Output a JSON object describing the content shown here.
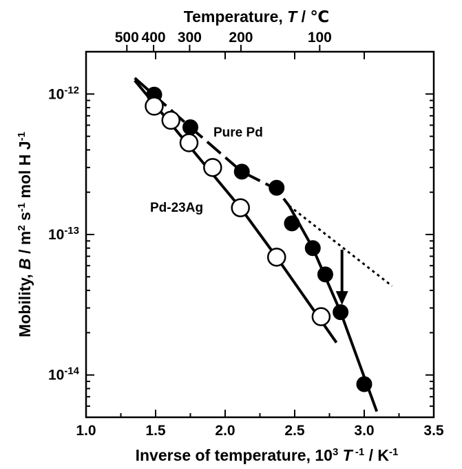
{
  "chart_data": {
    "type": "scatter",
    "x_axis": {
      "scale": "linear",
      "range": [
        1.0,
        3.5
      ],
      "ticks": [
        1.0,
        1.5,
        2.0,
        2.5,
        3.0,
        3.5
      ],
      "tick_labels": [
        "1.0",
        "1.5",
        "2.0",
        "2.5",
        "3.0",
        "3.5"
      ],
      "label_parts": [
        "Inverse of temperature, 10",
        "3",
        " T",
        " -1",
        " / K",
        "-1"
      ]
    },
    "y_axis": {
      "scale": "log",
      "range": [
        5e-15,
        2e-12
      ],
      "ticks": [
        1e-14,
        1e-13,
        1e-12
      ],
      "tick_labels": [
        {
          "base": "10",
          "exp": "-14"
        },
        {
          "base": "10",
          "exp": "-13"
        },
        {
          "base": "10",
          "exp": "-12"
        }
      ],
      "label_parts": [
        "Mobility, ",
        "B",
        " / m",
        "2",
        " s",
        "-1",
        " mol H J",
        "-1"
      ]
    },
    "top_axis": {
      "ticks_celsius": [
        500,
        400,
        300,
        200,
        100
      ],
      "tick_labels": [
        "500",
        "400",
        "300",
        "200",
        "100"
      ],
      "label_parts": [
        "Temperature, ",
        "T",
        " / ",
        "℃"
      ]
    },
    "series": [
      {
        "name": "Pure Pd",
        "marker": "filled-circle",
        "color": "#000000",
        "points": [
          {
            "x": 1.49,
            "y": 9.9e-13
          },
          {
            "x": 1.75,
            "y": 5.8e-13
          },
          {
            "x": 2.12,
            "y": 2.8e-13
          },
          {
            "x": 2.37,
            "y": 2.15e-13
          },
          {
            "x": 2.48,
            "y": 1.2e-13
          },
          {
            "x": 2.63,
            "y": 8e-14
          },
          {
            "x": 2.72,
            "y": 5.2e-14
          },
          {
            "x": 2.83,
            "y": 2.8e-14
          },
          {
            "x": 3.0,
            "y": 8.6e-15
          }
        ]
      },
      {
        "name": "Pd-23Ag",
        "marker": "open-circle",
        "color": "#000000",
        "points": [
          {
            "x": 1.49,
            "y": 8.2e-13
          },
          {
            "x": 1.61,
            "y": 6.5e-13
          },
          {
            "x": 1.74,
            "y": 4.5e-13
          },
          {
            "x": 1.91,
            "y": 3e-13
          },
          {
            "x": 2.11,
            "y": 1.55e-13
          },
          {
            "x": 2.37,
            "y": 6.9e-14
          },
          {
            "x": 2.69,
            "y": 2.6e-14
          }
        ]
      }
    ],
    "lines": [
      {
        "style": "dashed",
        "points": [
          {
            "x": 1.35,
            "y": 1.3e-12
          },
          {
            "x": 1.75,
            "y": 5.8e-13
          },
          {
            "x": 2.12,
            "y": 2.8e-13
          },
          {
            "x": 2.37,
            "y": 2.1e-13
          },
          {
            "x": 2.46,
            "y": 1.6e-13
          }
        ]
      },
      {
        "style": "solid",
        "points": [
          {
            "x": 2.46,
            "y": 1.6e-13
          },
          {
            "x": 2.63,
            "y": 8e-14
          },
          {
            "x": 2.83,
            "y": 2.8e-14
          },
          {
            "x": 3.09,
            "y": 5.5e-15
          }
        ]
      },
      {
        "style": "dotted",
        "points": [
          {
            "x": 2.46,
            "y": 1.6e-13
          },
          {
            "x": 3.2,
            "y": 4.3e-14
          }
        ]
      },
      {
        "style": "solid",
        "points": [
          {
            "x": 1.35,
            "y": 1.25e-12
          },
          {
            "x": 2.11,
            "y": 1.55e-13
          },
          {
            "x": 2.37,
            "y": 6.9e-14
          },
          {
            "x": 2.8,
            "y": 1.7e-14
          }
        ]
      }
    ],
    "arrow": {
      "x": 2.84,
      "y_from": 7.8e-14,
      "y_to": 3.3e-14
    }
  }
}
